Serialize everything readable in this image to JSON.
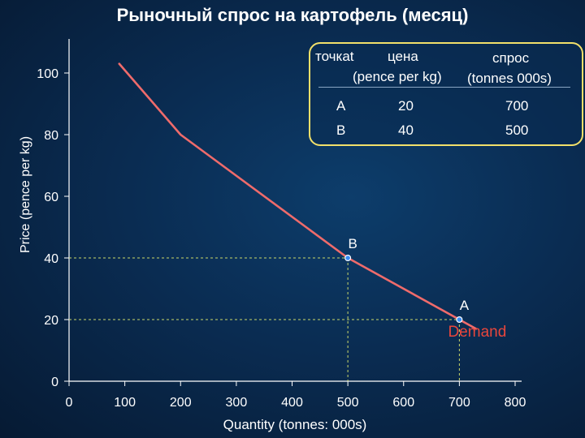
{
  "title": "Рыночный спрос на картофель (месяц)",
  "chart_data": {
    "type": "line",
    "title": "Рыночный спрос на картофель (месяц)",
    "xlabel": "Quantity (tonnes: 000s)",
    "ylabel": "Price (pence per kg)",
    "xlim": [
      0,
      800
    ],
    "ylim": [
      0,
      100
    ],
    "x_ticks": [
      0,
      100,
      200,
      300,
      400,
      500,
      600,
      700,
      800
    ],
    "y_ticks": [
      0,
      20,
      40,
      60,
      80,
      100
    ],
    "series": [
      {
        "name": "Demand",
        "color": "#ef6b6b",
        "points": [
          [
            90,
            103
          ],
          [
            200,
            80
          ],
          [
            500,
            40
          ],
          [
            730,
            17
          ]
        ]
      }
    ],
    "points": [
      {
        "label": "A",
        "x": 700,
        "y": 20
      },
      {
        "label": "B",
        "x": 500,
        "y": 40
      }
    ],
    "series_label": "Demand",
    "series_label_color": "#e8463c"
  },
  "table": {
    "headers": {
      "point": "точкаt",
      "price": "цена",
      "price_unit": "(pence per kg)",
      "demand": "спрос",
      "demand_unit": "(tonnes 000s)"
    },
    "rows": [
      {
        "point": "A",
        "price": "20",
        "demand": "700"
      },
      {
        "point": "B",
        "price": "40",
        "demand": "500"
      }
    ],
    "border_color": "#f2e06a"
  }
}
